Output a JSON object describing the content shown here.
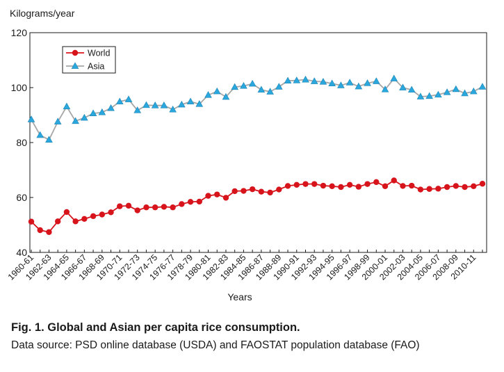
{
  "caption": {
    "title": "Fig. 1. Global and Asian per capita rice consumption.",
    "source": "Data source: PSD online database (USDA) and FAOSTAT population database (FAO)"
  },
  "chart_data": {
    "type": "line",
    "ylabel": "Kilograms/year",
    "xlabel": "Years",
    "ylim": [
      40,
      120
    ],
    "yticks": [
      40,
      60,
      80,
      100,
      120
    ],
    "grid": false,
    "legend_position": "top-left",
    "x": [
      "1960-61",
      "1961-62",
      "1962-63",
      "1963-64",
      "1964-65",
      "1965-66",
      "1966-67",
      "1967-68",
      "1968-69",
      "1969-70",
      "1970-71",
      "1971-72",
      "1972-73",
      "1973-74",
      "1974-75",
      "1975-76",
      "1976-77",
      "1977-78",
      "1978-79",
      "1979-80",
      "1980-81",
      "1981-82",
      "1982-83",
      "1983-84",
      "1984-85",
      "1985-86",
      "1986-87",
      "1987-88",
      "1988-89",
      "1989-90",
      "1990-91",
      "1991-92",
      "1992-93",
      "1993-94",
      "1994-95",
      "1995-96",
      "1996-97",
      "1997-98",
      "1998-99",
      "1999-00",
      "2000-01",
      "2001-02",
      "2002-03",
      "2003-04",
      "2004-05",
      "2005-06",
      "2006-07",
      "2007-08",
      "2008-09",
      "2009-10",
      "2010-11",
      "2011-12"
    ],
    "tick_labels": [
      "1960-61",
      "1962-63",
      "1964-65",
      "1966-67",
      "1968-69",
      "1970-71",
      "1972-73",
      "1974-75",
      "1976-77",
      "1978-79",
      "1980-81",
      "1982-83",
      "1984-85",
      "1986-87",
      "1988-89",
      "1990-91",
      "1992-93",
      "1994-95",
      "1996-97",
      "1998-99",
      "2000-01",
      "2002-03",
      "2004-05",
      "2006-07",
      "2008-09",
      "2010-11"
    ],
    "series": [
      {
        "name": "World",
        "color": "#d7141c",
        "marker": "circle",
        "values": [
          51.2,
          48.1,
          47.4,
          51.3,
          54.7,
          51.3,
          52.2,
          53.2,
          53.8,
          54.6,
          56.8,
          57.0,
          55.3,
          56.4,
          56.4,
          56.6,
          56.4,
          57.6,
          58.4,
          58.5,
          60.6,
          61.1,
          59.9,
          62.3,
          62.4,
          63.0,
          62.1,
          61.8,
          62.9,
          64.2,
          64.6,
          64.9,
          64.9,
          64.3,
          64.1,
          63.8,
          64.6,
          63.9,
          64.9,
          65.6,
          64.1,
          66.2,
          64.2,
          64.3,
          62.9,
          63.1,
          63.2,
          63.8,
          64.2,
          63.8,
          64.1,
          65.0
        ]
      },
      {
        "name": "Asia",
        "color": "#2aa7dd",
        "line_color": "#a6a6a6",
        "marker": "triangle",
        "values": [
          88.4,
          82.7,
          81.0,
          87.6,
          93.1,
          87.8,
          89.0,
          90.6,
          91.0,
          92.5,
          94.9,
          95.7,
          91.7,
          93.6,
          93.5,
          93.5,
          92.0,
          93.8,
          94.9,
          94.0,
          97.3,
          98.6,
          96.6,
          100.2,
          100.6,
          101.4,
          99.2,
          98.5,
          100.3,
          102.5,
          102.6,
          102.9,
          102.3,
          102.1,
          101.5,
          100.8,
          101.8,
          100.4,
          101.6,
          102.3,
          99.3,
          103.3,
          100.0,
          99.2,
          96.7,
          96.9,
          97.4,
          98.3,
          99.4,
          97.9,
          98.6,
          100.3
        ]
      }
    ]
  }
}
